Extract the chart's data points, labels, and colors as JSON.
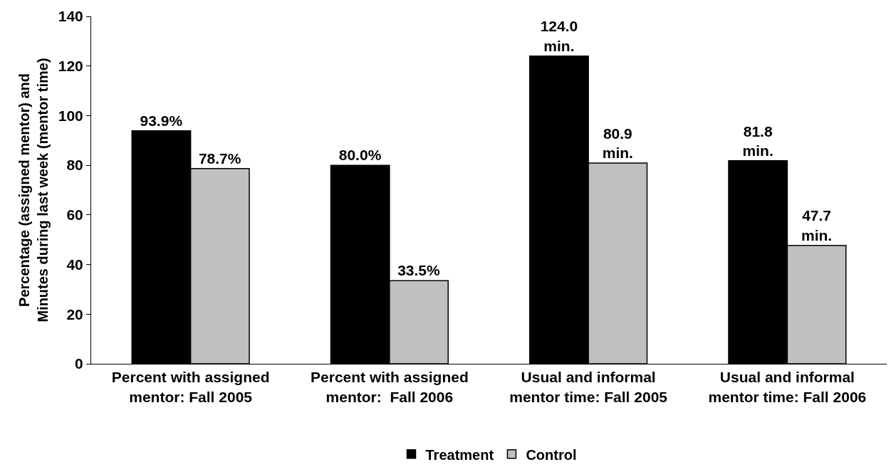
{
  "chart_data": {
    "type": "bar",
    "ylabel": "Percentage (assigned mentor) and\nMinutes during last week (mentor time)",
    "categories": [
      "Percent with assigned\nmentor: Fall 2005",
      "Percent with assigned\nmentor:  Fall 2006",
      "Usual and informal\nmentor time: Fall 2005",
      "Usual and informal\nmentor time: Fall 2006"
    ],
    "series": [
      {
        "name": "Treatment",
        "color": "#000000",
        "values": [
          93.9,
          80.0,
          124.0,
          81.8
        ],
        "value_labels": [
          "93.9%",
          "80.0%",
          "124.0\nmin.",
          "81.8\nmin."
        ]
      },
      {
        "name": "Control",
        "color": "#c0c0c0",
        "values": [
          78.7,
          33.5,
          80.9,
          47.7
        ],
        "value_labels": [
          "78.7%",
          "33.5%",
          "80.9\nmin.",
          "47.7\nmin."
        ]
      }
    ],
    "ylim": [
      0,
      140
    ],
    "yticks": [
      0,
      20,
      40,
      60,
      80,
      100,
      120,
      140
    ],
    "grid": false,
    "legend": "bottom"
  }
}
